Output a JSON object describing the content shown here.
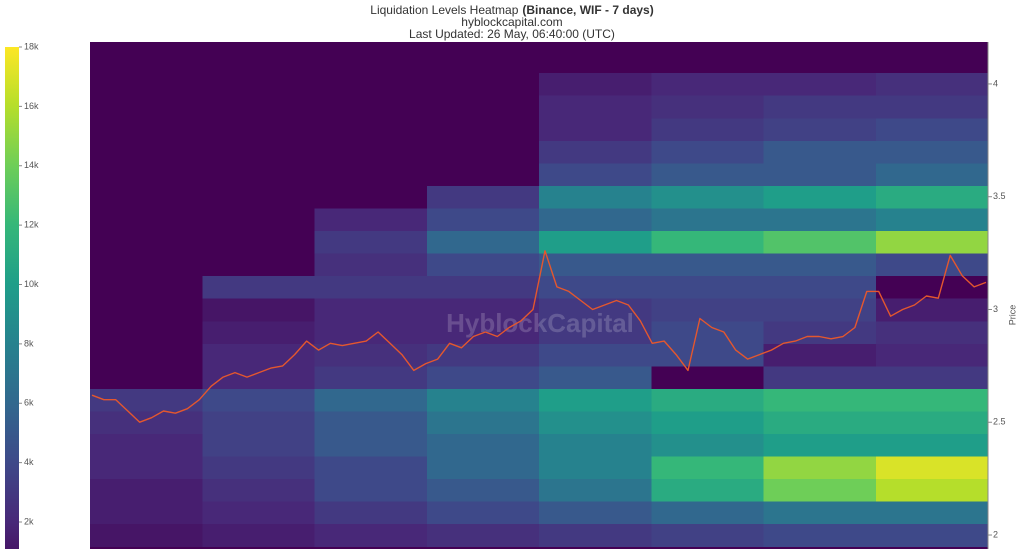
{
  "chart_data": {
    "type": "heatmap",
    "title": "Liquidation Levels Heatmap",
    "title_bold": "(Binance, WIF - 7 days)",
    "subtitle": "hyblockcapital.com",
    "updated": "Last Updated: 26 May, 06:40:00 (UTC)",
    "watermark": "HyblockCapital",
    "y_label": "Price",
    "ylim": [
      1.938,
      4.186
    ],
    "yticks": [
      2,
      2.5,
      3,
      3.5,
      4
    ],
    "colorscale": "viridis",
    "zlim": [
      0,
      18000
    ],
    "zticks": [
      {
        "value": 2000,
        "label": "2k"
      },
      {
        "value": 4000,
        "label": "4k"
      },
      {
        "value": 6000,
        "label": "6k"
      },
      {
        "value": 8000,
        "label": "8k"
      },
      {
        "value": 10000,
        "label": "10k"
      },
      {
        "value": 12000,
        "label": "12k"
      },
      {
        "value": 14000,
        "label": "14k"
      },
      {
        "value": 16000,
        "label": "16k"
      },
      {
        "value": 18000,
        "label": "18k"
      }
    ],
    "heatmap": {
      "y": [
        2.0,
        2.1,
        2.2,
        2.3,
        2.4,
        2.5,
        2.6,
        2.7,
        2.8,
        2.9,
        3.0,
        3.1,
        3.2,
        3.3,
        3.4,
        3.5,
        3.6,
        3.7,
        3.8,
        3.9,
        4.0,
        4.1
      ],
      "z": [
        [
          1000,
          1500,
          2000,
          2500,
          3000,
          3500,
          4000,
          4000
        ],
        [
          1500,
          2000,
          3000,
          4000,
          5000,
          6000,
          7000,
          7000
        ],
        [
          1500,
          2500,
          4000,
          5000,
          7000,
          11000,
          14000,
          16000
        ],
        [
          2000,
          3000,
          4000,
          6000,
          8000,
          12000,
          15000,
          17000
        ],
        [
          2000,
          3500,
          5000,
          6000,
          8000,
          9000,
          10000,
          10000
        ],
        [
          2500,
          3500,
          5000,
          7000,
          9000,
          10000,
          11000,
          11000
        ],
        [
          3000,
          4000,
          6000,
          8000,
          10000,
          11000,
          12000,
          12000
        ],
        [
          0,
          2000,
          3000,
          4000,
          5000,
          0,
          3000,
          3000
        ],
        [
          0,
          2000,
          2500,
          3000,
          4000,
          4000,
          1500,
          2000
        ],
        [
          0,
          1500,
          2000,
          2000,
          3000,
          4000,
          3000,
          2500
        ],
        [
          0,
          1000,
          2000,
          2000,
          3000,
          3500,
          3500,
          1500
        ],
        [
          0,
          3000,
          3000,
          3000,
          4000,
          4000,
          4000,
          0
        ],
        [
          0,
          0,
          2500,
          4000,
          5000,
          5000,
          5000,
          4000
        ],
        [
          0,
          0,
          3000,
          6000,
          10000,
          12000,
          13000,
          15000
        ],
        [
          0,
          0,
          2000,
          4000,
          6000,
          7000,
          7000,
          8000
        ],
        [
          0,
          0,
          0,
          3000,
          8000,
          9000,
          10000,
          11000
        ],
        [
          0,
          0,
          0,
          0,
          4000,
          5000,
          5000,
          6000
        ],
        [
          0,
          0,
          0,
          0,
          3000,
          4000,
          5000,
          5000
        ],
        [
          0,
          0,
          0,
          0,
          2000,
          3000,
          3500,
          4000
        ],
        [
          0,
          0,
          0,
          0,
          2000,
          2500,
          3000,
          3000
        ],
        [
          0,
          0,
          0,
          0,
          1500,
          2000,
          2000,
          2500
        ],
        [
          0,
          0,
          0,
          0,
          0,
          0,
          0,
          0
        ]
      ]
    },
    "price": {
      "color": "#e4572e",
      "values": [
        2.62,
        2.6,
        2.6,
        2.55,
        2.5,
        2.52,
        2.55,
        2.54,
        2.56,
        2.6,
        2.66,
        2.7,
        2.72,
        2.7,
        2.72,
        2.74,
        2.75,
        2.8,
        2.86,
        2.82,
        2.85,
        2.84,
        2.85,
        2.86,
        2.9,
        2.85,
        2.8,
        2.73,
        2.76,
        2.78,
        2.85,
        2.83,
        2.88,
        2.9,
        2.88,
        2.92,
        2.95,
        3.0,
        3.26,
        3.1,
        3.08,
        3.04,
        3.0,
        3.02,
        3.04,
        3.02,
        2.95,
        2.85,
        2.86,
        2.8,
        2.73,
        2.96,
        2.92,
        2.9,
        2.82,
        2.78,
        2.8,
        2.82,
        2.85,
        2.86,
        2.88,
        2.88,
        2.87,
        2.88,
        2.92,
        3.08,
        3.08,
        2.97,
        3.0,
        3.02,
        3.06,
        3.05,
        3.24,
        3.15,
        3.1,
        3.12
      ]
    }
  }
}
